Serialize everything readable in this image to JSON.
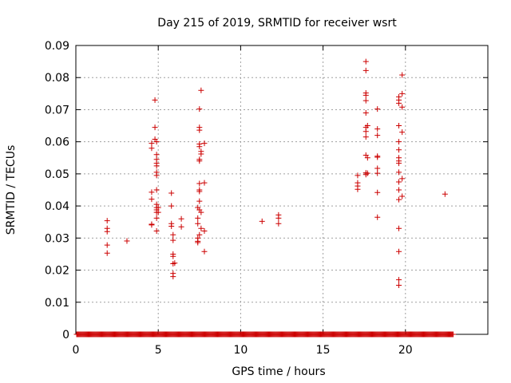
{
  "chart_data": {
    "type": "scatter",
    "title": "Day 215 of 2019, SRMTID for receiver wsrt",
    "xlabel": "GPS time / hours",
    "ylabel": "SRMTID / TECUs",
    "xlim": [
      0,
      25
    ],
    "ylim": [
      0,
      0.09
    ],
    "x_ticks": [
      "0",
      "5",
      "10",
      "15",
      "20"
    ],
    "y_ticks": [
      "0",
      "0.01",
      "0.02",
      "0.03",
      "0.04",
      "0.05",
      "0.06",
      "0.07",
      "0.08",
      "0.09"
    ],
    "grid": true,
    "marker": "+",
    "color": "#cc0000",
    "baseline": {
      "y": 0,
      "x_from": 0.05,
      "x_to": 22.9,
      "x_step": 0.05
    },
    "points": [
      [
        1.9,
        0.0354
      ],
      [
        1.9,
        0.033
      ],
      [
        1.9,
        0.032
      ],
      [
        1.9,
        0.0278
      ],
      [
        1.9,
        0.0253
      ],
      [
        3.1,
        0.0291
      ],
      [
        4.6,
        0.0595
      ],
      [
        4.6,
        0.058
      ],
      [
        4.6,
        0.0443
      ],
      [
        4.6,
        0.0421
      ],
      [
        4.6,
        0.0343
      ],
      [
        4.6,
        0.0341
      ],
      [
        4.8,
        0.073
      ],
      [
        4.8,
        0.0645
      ],
      [
        4.8,
        0.0608
      ],
      [
        4.9,
        0.06
      ],
      [
        4.9,
        0.056
      ],
      [
        4.9,
        0.0545
      ],
      [
        4.9,
        0.0533
      ],
      [
        4.9,
        0.0525
      ],
      [
        4.9,
        0.0505
      ],
      [
        4.9,
        0.0495
      ],
      [
        4.9,
        0.045
      ],
      [
        4.9,
        0.0405
      ],
      [
        4.9,
        0.0395
      ],
      [
        4.9,
        0.0388
      ],
      [
        4.9,
        0.038
      ],
      [
        4.9,
        0.0362
      ],
      [
        4.9,
        0.0322
      ],
      [
        5.0,
        0.0395
      ],
      [
        5.0,
        0.038
      ],
      [
        5.8,
        0.044
      ],
      [
        5.8,
        0.04
      ],
      [
        5.8,
        0.0345
      ],
      [
        5.8,
        0.0337
      ],
      [
        5.9,
        0.031
      ],
      [
        5.9,
        0.0293
      ],
      [
        5.9,
        0.025
      ],
      [
        5.9,
        0.0243
      ],
      [
        5.9,
        0.022
      ],
      [
        5.9,
        0.019
      ],
      [
        5.9,
        0.018
      ],
      [
        6.0,
        0.0222
      ],
      [
        6.4,
        0.036
      ],
      [
        6.4,
        0.0335
      ],
      [
        7.4,
        0.0395
      ],
      [
        7.4,
        0.0362
      ],
      [
        7.4,
        0.0345
      ],
      [
        7.4,
        0.03
      ],
      [
        7.4,
        0.029
      ],
      [
        7.4,
        0.0286
      ],
      [
        7.5,
        0.0702
      ],
      [
        7.5,
        0.0645
      ],
      [
        7.5,
        0.0636
      ],
      [
        7.5,
        0.0593
      ],
      [
        7.5,
        0.0585
      ],
      [
        7.5,
        0.0545
      ],
      [
        7.5,
        0.054
      ],
      [
        7.5,
        0.047
      ],
      [
        7.5,
        0.045
      ],
      [
        7.5,
        0.0445
      ],
      [
        7.5,
        0.0415
      ],
      [
        7.5,
        0.0388
      ],
      [
        7.5,
        0.031
      ],
      [
        7.6,
        0.076
      ],
      [
        7.6,
        0.057
      ],
      [
        7.6,
        0.0562
      ],
      [
        7.6,
        0.038
      ],
      [
        7.6,
        0.033
      ],
      [
        7.8,
        0.0595
      ],
      [
        7.8,
        0.0472
      ],
      [
        7.8,
        0.0322
      ],
      [
        7.8,
        0.0258
      ],
      [
        11.3,
        0.0352
      ],
      [
        12.3,
        0.0372
      ],
      [
        12.3,
        0.0362
      ],
      [
        12.3,
        0.0345
      ],
      [
        17.1,
        0.0495
      ],
      [
        17.1,
        0.0472
      ],
      [
        17.1,
        0.0462
      ],
      [
        17.1,
        0.0452
      ],
      [
        17.6,
        0.085
      ],
      [
        17.6,
        0.0822
      ],
      [
        17.6,
        0.0752
      ],
      [
        17.6,
        0.0745
      ],
      [
        17.6,
        0.0728
      ],
      [
        17.6,
        0.069
      ],
      [
        17.6,
        0.0645
      ],
      [
        17.6,
        0.0632
      ],
      [
        17.6,
        0.0615
      ],
      [
        17.6,
        0.0558
      ],
      [
        17.6,
        0.0503
      ],
      [
        17.6,
        0.0498
      ],
      [
        17.7,
        0.065
      ],
      [
        17.7,
        0.055
      ],
      [
        17.7,
        0.0502
      ],
      [
        18.3,
        0.0702
      ],
      [
        18.3,
        0.064
      ],
      [
        18.3,
        0.062
      ],
      [
        18.3,
        0.0555
      ],
      [
        18.3,
        0.0552
      ],
      [
        18.3,
        0.0517
      ],
      [
        18.3,
        0.0502
      ],
      [
        18.3,
        0.0442
      ],
      [
        18.3,
        0.0365
      ],
      [
        19.6,
        0.074
      ],
      [
        19.6,
        0.073
      ],
      [
        19.6,
        0.072
      ],
      [
        19.6,
        0.065
      ],
      [
        19.6,
        0.06
      ],
      [
        19.6,
        0.0575
      ],
      [
        19.6,
        0.055
      ],
      [
        19.6,
        0.054
      ],
      [
        19.6,
        0.0533
      ],
      [
        19.6,
        0.0505
      ],
      [
        19.6,
        0.0475
      ],
      [
        19.6,
        0.045
      ],
      [
        19.6,
        0.042
      ],
      [
        19.6,
        0.033
      ],
      [
        19.6,
        0.0258
      ],
      [
        19.6,
        0.017
      ],
      [
        19.6,
        0.0153
      ],
      [
        19.8,
        0.0808
      ],
      [
        19.8,
        0.075
      ],
      [
        19.8,
        0.0708
      ],
      [
        19.8,
        0.063
      ],
      [
        19.8,
        0.0485
      ],
      [
        19.8,
        0.043
      ],
      [
        22.4,
        0.0437
      ]
    ]
  }
}
